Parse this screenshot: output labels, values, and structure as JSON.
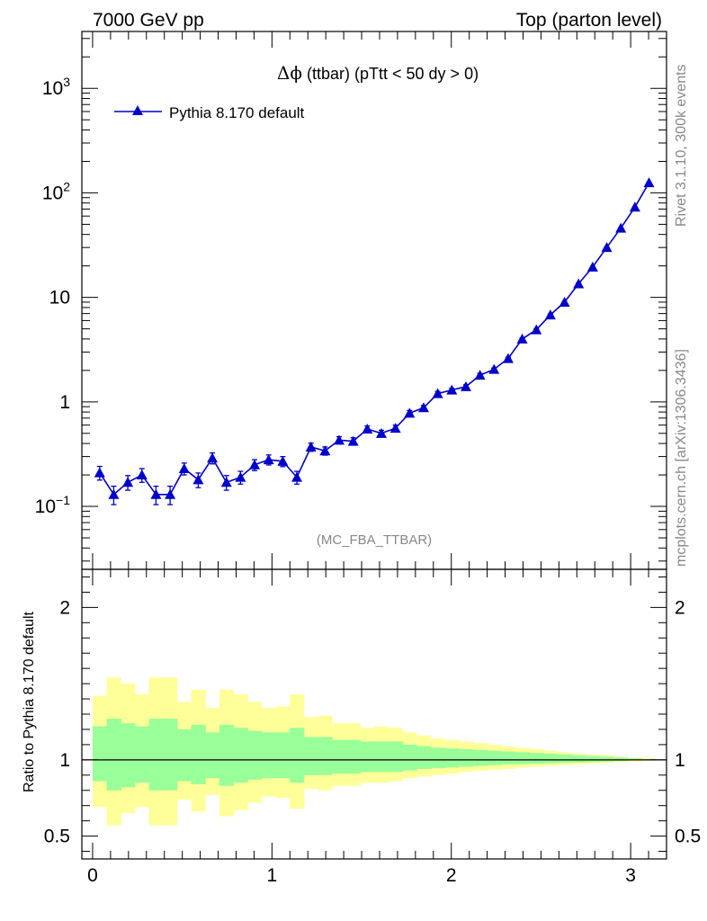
{
  "header": {
    "left": "7000 GeV pp",
    "right": "Top (parton level)"
  },
  "side": {
    "rivet": "Rivet 3.1.10,  300k events",
    "mcplots": "mcplots.cern.ch [arXiv:1306.3436]"
  },
  "colors": {
    "series": "#0000cc",
    "band_outer": "#ffff99",
    "band_inner": "#99ff99",
    "frame": "#000000",
    "grey_text": "#888888"
  },
  "chart_data": [
    {
      "type": "line",
      "title": "Δϕ (ttbar) (pTtt < 50 dy > 0)",
      "title_symbol": "Δϕ",
      "title_rest": " (ttbar) (pTtt < 50 dy > 0)",
      "watermark": "(MC_FBA_TTBAR)",
      "yscale": "log",
      "xlim": [
        -0.06,
        3.2
      ],
      "ylim": [
        0.025,
        3500
      ],
      "grid": false,
      "legend_position": "top-left",
      "xlabel": "",
      "ylabel": "",
      "y_ticks": [
        {
          "value": 0.1,
          "label": "10",
          "exp": "−1"
        },
        {
          "value": 1,
          "label": "1",
          "exp": ""
        },
        {
          "value": 10,
          "label": "10",
          "exp": ""
        },
        {
          "value": 100,
          "label": "10",
          "exp": "2"
        },
        {
          "value": 1000,
          "label": "10",
          "exp": "3"
        }
      ],
      "series": [
        {
          "name": "Pythia 8.170 default",
          "marker": "triangle-up",
          "x": [
            0.0393,
            0.1178,
            0.1963,
            0.2749,
            0.3534,
            0.432,
            0.5105,
            0.589,
            0.6676,
            0.7461,
            0.8247,
            0.9032,
            0.9817,
            1.0603,
            1.1388,
            1.2174,
            1.2959,
            1.3744,
            1.453,
            1.5315,
            1.6101,
            1.6886,
            1.7671,
            1.8457,
            1.9242,
            2.0028,
            2.0813,
            2.1598,
            2.2384,
            2.3169,
            2.3955,
            2.474,
            2.5525,
            2.6311,
            2.7096,
            2.7882,
            2.8667,
            2.9452,
            3.0238,
            3.1023
          ],
          "y": [
            0.21,
            0.13,
            0.17,
            0.2,
            0.13,
            0.13,
            0.23,
            0.18,
            0.29,
            0.17,
            0.19,
            0.25,
            0.28,
            0.27,
            0.19,
            0.37,
            0.34,
            0.43,
            0.42,
            0.55,
            0.5,
            0.56,
            0.78,
            0.88,
            1.2,
            1.3,
            1.4,
            1.8,
            2.05,
            2.6,
            4.0,
            4.9,
            6.8,
            9.0,
            13.5,
            19.5,
            30,
            46,
            73,
            125
          ],
          "yerr_rel": [
            0.15,
            0.2,
            0.16,
            0.15,
            0.2,
            0.2,
            0.13,
            0.16,
            0.12,
            0.16,
            0.14,
            0.12,
            0.11,
            0.11,
            0.14,
            0.09,
            0.09,
            0.08,
            0.08,
            0.07,
            0.07,
            0.07,
            0.06,
            0.05,
            0.05,
            0.04,
            0.04,
            0.04,
            0.03,
            0.03,
            0.02,
            0.02,
            0.02,
            0.015,
            0.012,
            0.01,
            0.008,
            0.006,
            0.005,
            0.004
          ]
        }
      ]
    },
    {
      "type": "area",
      "ylabel": "Ratio to Pythia 8.170 default",
      "xlabel": "",
      "xlim": [
        -0.06,
        3.2
      ],
      "ylim": [
        0.35,
        2.25
      ],
      "grid": false,
      "x_ticks": [
        0,
        1,
        2,
        3
      ],
      "y_ticks": [
        0.5,
        1,
        2
      ],
      "reference_line": 1,
      "bands": {
        "bin_edges": [
          0.0,
          0.0785,
          0.1571,
          0.2356,
          0.3142,
          0.3927,
          0.4712,
          0.5498,
          0.6283,
          0.7069,
          0.7854,
          0.8639,
          0.9425,
          1.021,
          1.0996,
          1.1781,
          1.2566,
          1.3352,
          1.4137,
          1.4923,
          1.5708,
          1.6493,
          1.7279,
          1.8064,
          1.885,
          1.9635,
          2.042,
          2.1206,
          2.1991,
          2.2777,
          2.3562,
          2.4347,
          2.5133,
          2.5918,
          2.6704,
          2.7489,
          2.8274,
          2.906,
          2.9845,
          3.0631,
          3.1416
        ],
        "outer_up": [
          1.42,
          1.54,
          1.5,
          1.43,
          1.54,
          1.54,
          1.38,
          1.46,
          1.34,
          1.46,
          1.43,
          1.38,
          1.34,
          1.35,
          1.43,
          1.28,
          1.29,
          1.24,
          1.24,
          1.21,
          1.22,
          1.21,
          1.18,
          1.16,
          1.14,
          1.13,
          1.12,
          1.11,
          1.1,
          1.09,
          1.08,
          1.07,
          1.06,
          1.05,
          1.04,
          1.035,
          1.03,
          1.02,
          1.015,
          1.01
        ],
        "outer_lo": [
          0.69,
          0.57,
          0.65,
          0.69,
          0.57,
          0.57,
          0.74,
          0.66,
          0.77,
          0.63,
          0.67,
          0.72,
          0.76,
          0.75,
          0.68,
          0.81,
          0.8,
          0.83,
          0.83,
          0.85,
          0.85,
          0.86,
          0.88,
          0.89,
          0.9,
          0.91,
          0.92,
          0.93,
          0.935,
          0.94,
          0.95,
          0.955,
          0.96,
          0.965,
          0.97,
          0.975,
          0.98,
          0.985,
          0.99,
          0.995
        ],
        "inner_up": [
          1.22,
          1.27,
          1.24,
          1.22,
          1.27,
          1.27,
          1.2,
          1.23,
          1.18,
          1.23,
          1.21,
          1.19,
          1.18,
          1.18,
          1.21,
          1.15,
          1.15,
          1.13,
          1.13,
          1.12,
          1.12,
          1.12,
          1.1,
          1.09,
          1.08,
          1.075,
          1.07,
          1.065,
          1.06,
          1.055,
          1.05,
          1.045,
          1.04,
          1.035,
          1.03,
          1.025,
          1.02,
          1.015,
          1.01,
          1.005
        ],
        "inner_lo": [
          0.86,
          0.8,
          0.82,
          0.85,
          0.8,
          0.8,
          0.86,
          0.84,
          0.88,
          0.83,
          0.85,
          0.87,
          0.88,
          0.88,
          0.85,
          0.9,
          0.9,
          0.91,
          0.91,
          0.92,
          0.92,
          0.92,
          0.93,
          0.94,
          0.945,
          0.95,
          0.955,
          0.96,
          0.965,
          0.97,
          0.972,
          0.975,
          0.978,
          0.98,
          0.983,
          0.986,
          0.99,
          0.993,
          0.996,
          0.998
        ]
      }
    }
  ]
}
